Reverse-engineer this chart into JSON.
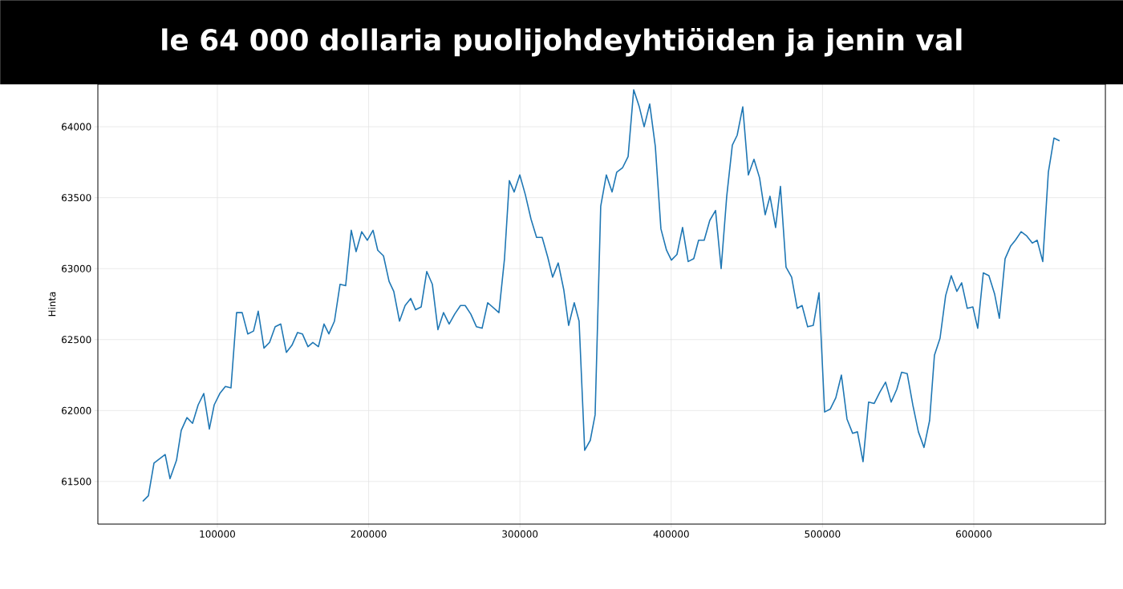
{
  "chart_data": {
    "type": "line",
    "title": "le 64 000 dollaria puolijohdeyhtiöiden ja jenin val",
    "ylabel": "Hinta",
    "x": [
      50700,
      54400,
      58100,
      65500,
      68700,
      73000,
      76100,
      79900,
      83600,
      87300,
      91000,
      94700,
      97900,
      101600,
      105300,
      109000,
      112700,
      116400,
      120100,
      123900,
      127000,
      130800,
      134500,
      138200,
      141900,
      145600,
      149300,
      153000,
      156200,
      159900,
      163100,
      166800,
      170500,
      173700,
      177400,
      181100,
      184800,
      188500,
      191700,
      195400,
      199100,
      202900,
      206000,
      209800,
      213500,
      216600,
      220400,
      224100,
      227800,
      231000,
      234700,
      238400,
      242100,
      245800,
      249500,
      253200,
      256900,
      260700,
      263800,
      267500,
      271300,
      275000,
      278700,
      286100,
      289800,
      293000,
      296200,
      299900,
      303600,
      307300,
      311000,
      314700,
      318400,
      321600,
      325300,
      329000,
      332200,
      335900,
      339100,
      342800,
      346500,
      349700,
      353400,
      357100,
      360900,
      364000,
      367800,
      371500,
      375200,
      378900,
      382100,
      385800,
      389500,
      393200,
      396900,
      400100,
      403800,
      407500,
      411200,
      414900,
      418100,
      421800,
      425500,
      429300,
      433000,
      436700,
      440400,
      443600,
      447300,
      451000,
      454700,
      458400,
      462100,
      465300,
      469000,
      472200,
      475900,
      479600,
      483300,
      486500,
      490200,
      493900,
      497700,
      501400,
      505100,
      508800,
      512500,
      516200,
      519900,
      523100,
      526800,
      530500,
      534200,
      537900,
      541700,
      545400,
      549100,
      552300,
      556000,
      559700,
      563400,
      567100,
      570800,
      574000,
      577700,
      581400,
      585100,
      588800,
      592000,
      595700,
      599400,
      602600,
      606300,
      610000,
      613800,
      616900,
      620700,
      624400,
      627500,
      631300,
      635000,
      638700,
      641900,
      645600,
      649300,
      653000,
      656700
    ],
    "series": [
      {
        "color": "#1f77b4",
        "values": [
          61360,
          61400,
          61630,
          61690,
          61520,
          61650,
          61860,
          61950,
          61910,
          62040,
          62120,
          61870,
          62040,
          62120,
          62170,
          62160,
          62690,
          62690,
          62540,
          62560,
          62700,
          62440,
          62480,
          62590,
          62610,
          62410,
          62460,
          62550,
          62540,
          62450,
          62480,
          62450,
          62610,
          62540,
          62630,
          62890,
          62880,
          63270,
          63120,
          63260,
          63200,
          63270,
          63130,
          63090,
          62910,
          62840,
          62630,
          62740,
          62790,
          62710,
          62730,
          62980,
          62890,
          62570,
          62690,
          62610,
          62680,
          62740,
          62740,
          62680,
          62590,
          62580,
          62760,
          62690,
          63070,
          63620,
          63540,
          63660,
          63520,
          63350,
          63220,
          63220,
          63080,
          62940,
          63040,
          62850,
          62600,
          62760,
          62630,
          61720,
          61790,
          61970,
          63440,
          63660,
          63540,
          63680,
          63710,
          63790,
          64260,
          64140,
          64000,
          64160,
          63860,
          63280,
          63130,
          63060,
          63100,
          63290,
          63050,
          63070,
          63200,
          63200,
          63340,
          63410,
          63000,
          63510,
          63870,
          63940,
          64140,
          63660,
          63770,
          63640,
          63380,
          63510,
          63290,
          63580,
          63010,
          62940,
          62720,
          62740,
          62590,
          62600,
          62830,
          61990,
          62010,
          62090,
          62250,
          61940,
          61840,
          61850,
          61640,
          62060,
          62050,
          62130,
          62200,
          62060,
          62150,
          62270,
          62260,
          62040,
          61850,
          61740,
          61930,
          62390,
          62510,
          62810,
          62950,
          62840,
          62900,
          62720,
          62730,
          62580,
          62970,
          62950,
          62820,
          62650,
          63070,
          63160,
          63200,
          63260,
          63230,
          63180,
          63200,
          63050,
          63680,
          63920,
          63900
        ]
      }
    ],
    "xlim": [
      21000,
      687000
    ],
    "ylim": [
      61200,
      64300
    ],
    "xticks": [
      100000,
      200000,
      300000,
      400000,
      500000,
      600000
    ],
    "yticks": [
      61500,
      62000,
      62500,
      63000,
      63500,
      64000
    ],
    "grid": true,
    "marker": "none",
    "line_style": "solid"
  }
}
